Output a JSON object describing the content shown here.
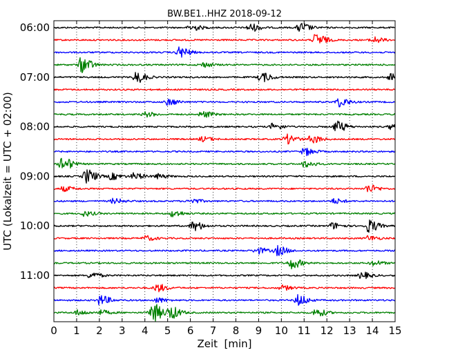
{
  "chart_data": {
    "type": "line",
    "title": "BW.BE1..HHZ 2018-09-12",
    "xlabel": "Zeit  [min]",
    "ylabel": "UTC (Lokalzeit = UTC + 02:00)",
    "xlim": [
      0,
      15
    ],
    "x_ticks": [
      "0",
      "1",
      "2",
      "3",
      "4",
      "5",
      "6",
      "7",
      "8",
      "9",
      "10",
      "11",
      "12",
      "13",
      "14",
      "15"
    ],
    "y_ticks": [
      "06:00",
      "07:00",
      "08:00",
      "09:00",
      "10:00",
      "11:00"
    ],
    "grid": "vertical dotted",
    "colors": [
      "#000000",
      "#ff0000",
      "#0000ff",
      "#008000"
    ],
    "traces": [
      {
        "start": "06:00",
        "color": "#000000",
        "events": [
          [
            6.0,
            0.4
          ],
          [
            8.6,
            0.5
          ],
          [
            10.8,
            0.6
          ]
        ]
      },
      {
        "start": "06:15",
        "color": "#ff0000",
        "events": [
          [
            11.5,
            0.8
          ],
          [
            14.0,
            0.4
          ]
        ]
      },
      {
        "start": "06:30",
        "color": "#0000ff",
        "events": [
          [
            5.5,
            0.7
          ]
        ]
      },
      {
        "start": "06:45",
        "color": "#008000",
        "events": [
          [
            1.2,
            1.0
          ],
          [
            6.5,
            0.3
          ]
        ]
      },
      {
        "start": "07:00",
        "color": "#000000",
        "events": [
          [
            3.6,
            0.7
          ],
          [
            9.1,
            0.6
          ],
          [
            14.8,
            0.5
          ]
        ]
      },
      {
        "start": "07:15",
        "color": "#ff0000",
        "events": []
      },
      {
        "start": "07:30",
        "color": "#0000ff",
        "events": [
          [
            5.0,
            0.4
          ],
          [
            12.5,
            0.6
          ]
        ]
      },
      {
        "start": "07:45",
        "color": "#008000",
        "events": [
          [
            6.5,
            0.4
          ],
          [
            4.0,
            0.3
          ]
        ]
      },
      {
        "start": "08:00",
        "color": "#000000",
        "events": [
          [
            12.4,
            0.7
          ],
          [
            9.6,
            0.4
          ],
          [
            14.8,
            0.3
          ]
        ]
      },
      {
        "start": "08:15",
        "color": "#ff0000",
        "events": [
          [
            10.2,
            0.6
          ],
          [
            11.3,
            0.5
          ],
          [
            6.5,
            0.3
          ]
        ]
      },
      {
        "start": "08:30",
        "color": "#0000ff",
        "events": [
          [
            11.0,
            0.5
          ]
        ]
      },
      {
        "start": "08:45",
        "color": "#008000",
        "events": [
          [
            0.35,
            0.9
          ],
          [
            11.0,
            0.4
          ]
        ]
      },
      {
        "start": "09:00",
        "color": "#000000",
        "events": [
          [
            1.4,
            0.9
          ],
          [
            2.5,
            0.4
          ],
          [
            3.5,
            0.4
          ],
          [
            4.5,
            0.3
          ]
        ]
      },
      {
        "start": "09:15",
        "color": "#ff0000",
        "events": [
          [
            13.8,
            0.5
          ],
          [
            0.4,
            0.3
          ]
        ]
      },
      {
        "start": "09:30",
        "color": "#0000ff",
        "events": [
          [
            2.6,
            0.3
          ],
          [
            6.0,
            0.3
          ],
          [
            12.3,
            0.3
          ]
        ]
      },
      {
        "start": "09:45",
        "color": "#008000",
        "events": [
          [
            5.2,
            0.4
          ],
          [
            1.3,
            0.3
          ]
        ]
      },
      {
        "start": "10:00",
        "color": "#000000",
        "events": [
          [
            6.1,
            0.6
          ],
          [
            13.8,
            0.8
          ],
          [
            12.2,
            0.4
          ]
        ]
      },
      {
        "start": "10:15",
        "color": "#ff0000",
        "events": [
          [
            4.0,
            0.3
          ],
          [
            13.8,
            0.3
          ]
        ]
      },
      {
        "start": "10:30",
        "color": "#0000ff",
        "events": [
          [
            8.9,
            0.4
          ],
          [
            9.8,
            0.6
          ]
        ]
      },
      {
        "start": "10:45",
        "color": "#008000",
        "events": [
          [
            10.4,
            0.7
          ],
          [
            14.0,
            0.3
          ]
        ]
      },
      {
        "start": "11:00",
        "color": "#000000",
        "events": [
          [
            1.6,
            0.4
          ],
          [
            13.5,
            0.4
          ]
        ]
      },
      {
        "start": "11:15",
        "color": "#ff0000",
        "events": [
          [
            4.5,
            0.5
          ],
          [
            10.0,
            0.3
          ]
        ]
      },
      {
        "start": "11:30",
        "color": "#0000ff",
        "events": [
          [
            2.0,
            0.6
          ],
          [
            10.7,
            0.7
          ],
          [
            4.5,
            0.3
          ]
        ]
      },
      {
        "start": "11:45",
        "color": "#008000",
        "events": [
          [
            4.3,
            1.2
          ],
          [
            5.1,
            0.8
          ],
          [
            1.0,
            0.3
          ],
          [
            11.5,
            0.5
          ],
          [
            2.0,
            0.3
          ]
        ]
      }
    ]
  }
}
